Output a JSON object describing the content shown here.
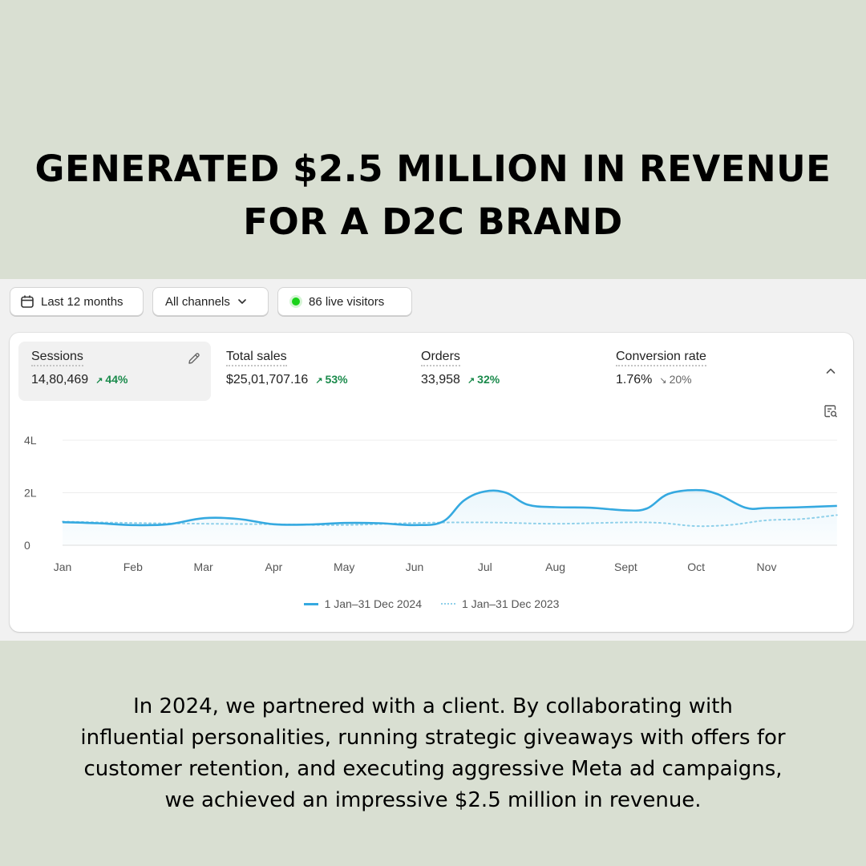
{
  "headline": {
    "line1": "GENERATED $2.5 MILLION IN REVENUE",
    "line2": "FOR A D2C BRAND"
  },
  "filters": {
    "date_range": {
      "label": "Last 12 months",
      "icon": "calendar-icon"
    },
    "channels": {
      "label": "All channels",
      "icon": "chevron-down-icon"
    },
    "live": {
      "label": "86 live visitors",
      "dot_color": "#19d219"
    }
  },
  "metrics": [
    {
      "label": "Sessions",
      "value": "14,80,469",
      "change": "44%",
      "direction": "up",
      "active": true
    },
    {
      "label": "Total sales",
      "value": "$25,01,707.16",
      "change": "53%",
      "direction": "up",
      "active": false
    },
    {
      "label": "Orders",
      "value": "33,958",
      "change": "32%",
      "direction": "up",
      "active": false
    },
    {
      "label": "Conversion rate",
      "value": "1.76%",
      "change": "20%",
      "direction": "down",
      "active": false
    }
  ],
  "chart_data": {
    "type": "line",
    "categories": [
      "Jan",
      "Feb",
      "Mar",
      "Apr",
      "May",
      "Jun",
      "Jul",
      "Aug",
      "Sept",
      "Oct",
      "Nov"
    ],
    "y_ticks": [
      "4L",
      "2L",
      "0"
    ],
    "ylim": [
      0,
      400000
    ],
    "grid": true,
    "series": [
      {
        "name": "1 Jan–31 Dec 2024",
        "style": "solid",
        "color": "#35a9e0",
        "x": [
          0,
          0.5,
          1,
          1.5,
          2,
          2.5,
          3,
          3.5,
          4,
          4.5,
          5,
          5.4,
          5.7,
          6,
          6.3,
          6.6,
          7,
          7.5,
          8,
          8.3,
          8.6,
          9,
          9.3,
          9.7,
          10,
          10.5,
          11
        ],
        "values": [
          88000,
          84000,
          77000,
          80000,
          103000,
          100000,
          80000,
          79000,
          85000,
          84000,
          77000,
          90000,
          170000,
          205000,
          200000,
          155000,
          145000,
          143000,
          133000,
          140000,
          195000,
          210000,
          195000,
          143000,
          142000,
          145000,
          150000
        ]
      },
      {
        "name": "1 Jan–31 Dec 2023",
        "style": "dotted",
        "color": "#8fd0ea",
        "x": [
          0,
          1,
          2,
          3,
          4,
          5,
          6,
          7,
          8,
          8.5,
          9,
          9.5,
          10,
          10.5,
          11
        ],
        "values": [
          90000,
          85000,
          82000,
          80000,
          77000,
          85000,
          87000,
          82000,
          87000,
          85000,
          73000,
          78000,
          95000,
          100000,
          115000
        ]
      }
    ]
  },
  "icons": {
    "edit": "pencil-icon",
    "collapse": "chevron-up-icon",
    "analyze": "ask-chart-icon"
  },
  "body_text": {
    "line1": "In 2024, we partnered with a client. By collaborating with",
    "line2": "influential personalities, running strategic giveaways with offers for",
    "line3": "customer retention, and executing aggressive Meta ad campaigns,",
    "line4": "we achieved an impressive $2.5 million in revenue."
  }
}
